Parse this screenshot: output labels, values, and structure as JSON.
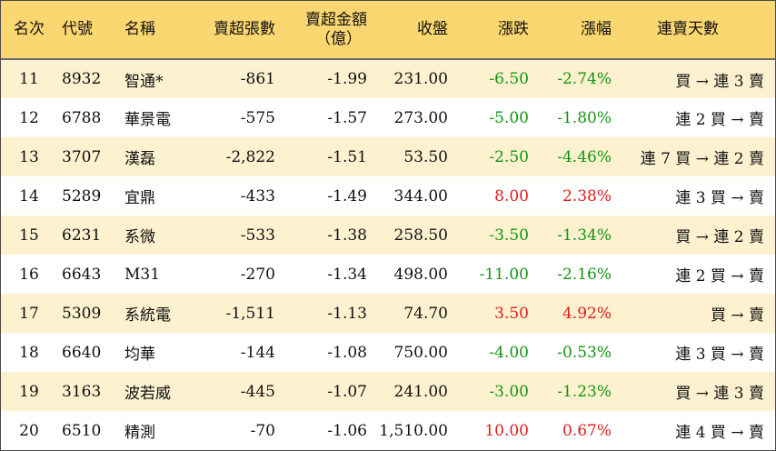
{
  "columns": {
    "rank": "名次",
    "code": "代號",
    "name": "名稱",
    "net_shares": "賣超張數",
    "net_amount": "賣超金額",
    "net_amount_unit": "（億）",
    "close": "收盤",
    "change": "漲跌",
    "change_pct": "漲幅",
    "streak": "連賣天數"
  },
  "colors": {
    "header_bg": "#fbd771",
    "odd_row_bg": "#fdf1cf",
    "up": "#e01b1b",
    "down": "#129512"
  },
  "rows": [
    {
      "rank": "11",
      "code": "8932",
      "name": "智通*",
      "net_shares": "-861",
      "net_amount": "-1.99",
      "close": "231.00",
      "change": "-6.50",
      "change_pct": "-2.74%",
      "direction": "down",
      "streak": "買 → 連 3 賣"
    },
    {
      "rank": "12",
      "code": "6788",
      "name": "華景電",
      "net_shares": "-575",
      "net_amount": "-1.57",
      "close": "273.00",
      "change": "-5.00",
      "change_pct": "-1.80%",
      "direction": "down",
      "streak": "連 2 買 → 賣"
    },
    {
      "rank": "13",
      "code": "3707",
      "name": "漢磊",
      "net_shares": "-2,822",
      "net_amount": "-1.51",
      "close": "53.50",
      "change": "-2.50",
      "change_pct": "-4.46%",
      "direction": "down",
      "streak": "連 7 買 → 連 2 賣"
    },
    {
      "rank": "14",
      "code": "5289",
      "name": "宜鼎",
      "net_shares": "-433",
      "net_amount": "-1.49",
      "close": "344.00",
      "change": "8.00",
      "change_pct": "2.38%",
      "direction": "up",
      "streak": "連 3 買 → 賣"
    },
    {
      "rank": "15",
      "code": "6231",
      "name": "系微",
      "net_shares": "-533",
      "net_amount": "-1.38",
      "close": "258.50",
      "change": "-3.50",
      "change_pct": "-1.34%",
      "direction": "down",
      "streak": "買 → 連 2 賣"
    },
    {
      "rank": "16",
      "code": "6643",
      "name": "M31",
      "net_shares": "-270",
      "net_amount": "-1.34",
      "close": "498.00",
      "change": "-11.00",
      "change_pct": "-2.16%",
      "direction": "down",
      "streak": "連 2 買 → 賣"
    },
    {
      "rank": "17",
      "code": "5309",
      "name": "系統電",
      "net_shares": "-1,511",
      "net_amount": "-1.13",
      "close": "74.70",
      "change": "3.50",
      "change_pct": "4.92%",
      "direction": "up",
      "streak": "買 → 賣"
    },
    {
      "rank": "18",
      "code": "6640",
      "name": "均華",
      "net_shares": "-144",
      "net_amount": "-1.08",
      "close": "750.00",
      "change": "-4.00",
      "change_pct": "-0.53%",
      "direction": "down",
      "streak": "連 3 買 → 賣"
    },
    {
      "rank": "19",
      "code": "3163",
      "name": "波若威",
      "net_shares": "-445",
      "net_amount": "-1.07",
      "close": "241.00",
      "change": "-3.00",
      "change_pct": "-1.23%",
      "direction": "down",
      "streak": "買 → 連 3 賣"
    },
    {
      "rank": "20",
      "code": "6510",
      "name": "精測",
      "net_shares": "-70",
      "net_amount": "-1.06",
      "close": "1,510.00",
      "change": "10.00",
      "change_pct": "0.67%",
      "direction": "up",
      "streak": "連 4 買 → 賣"
    }
  ]
}
